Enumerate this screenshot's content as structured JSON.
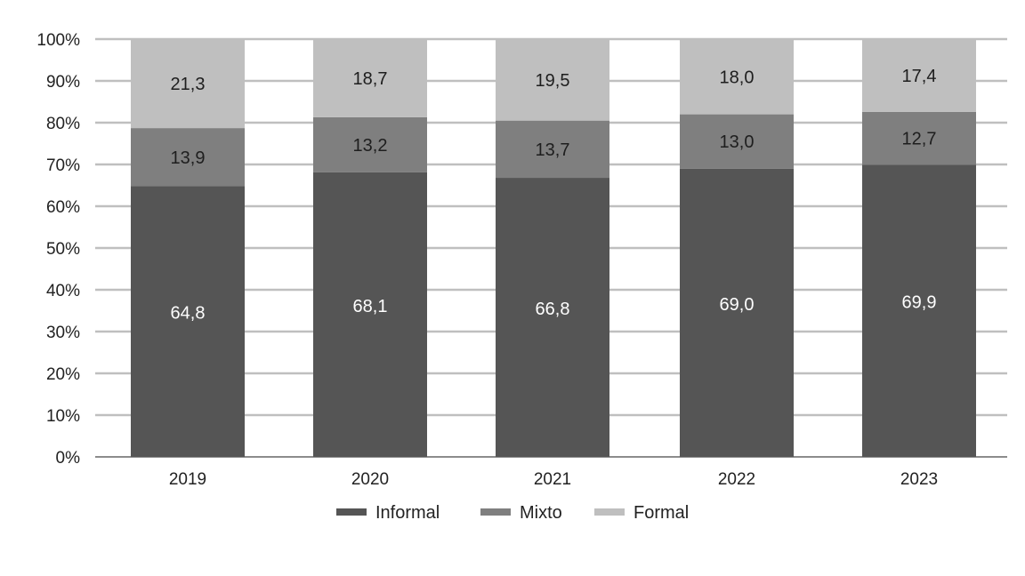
{
  "chart_data": {
    "type": "bar",
    "stacked": true,
    "title": "",
    "xlabel": "",
    "ylabel": "",
    "categories": [
      "2019",
      "2020",
      "2021",
      "2022",
      "2023"
    ],
    "series": [
      {
        "name": "Informal",
        "values": [
          64.8,
          68.1,
          66.8,
          69.0,
          69.9
        ],
        "labels": [
          "64,8",
          "68,1",
          "66,8",
          "69,0",
          "69,9"
        ],
        "color": "#555555",
        "label_color": "#ffffff"
      },
      {
        "name": "Mixto",
        "values": [
          13.9,
          13.2,
          13.7,
          13.0,
          12.7
        ],
        "labels": [
          "13,9",
          "13,2",
          "13,7",
          "13,0",
          "12,7"
        ],
        "color": "#7f7f7f",
        "label_color": "#1e1e1e"
      },
      {
        "name": "Formal",
        "values": [
          21.3,
          18.7,
          19.5,
          18.0,
          17.4
        ],
        "labels": [
          "21,3",
          "18,7",
          "19,5",
          "18,0",
          "17,4"
        ],
        "color": "#bfbfbf",
        "label_color": "#1e1e1e"
      }
    ],
    "yticks": [
      "0%",
      "10%",
      "20%",
      "30%",
      "40%",
      "50%",
      "60%",
      "70%",
      "80%",
      "90%",
      "100%"
    ],
    "ylim": [
      0,
      100
    ],
    "grid": true,
    "legend": "bottom",
    "gridline_color": "#bfbfbf"
  }
}
